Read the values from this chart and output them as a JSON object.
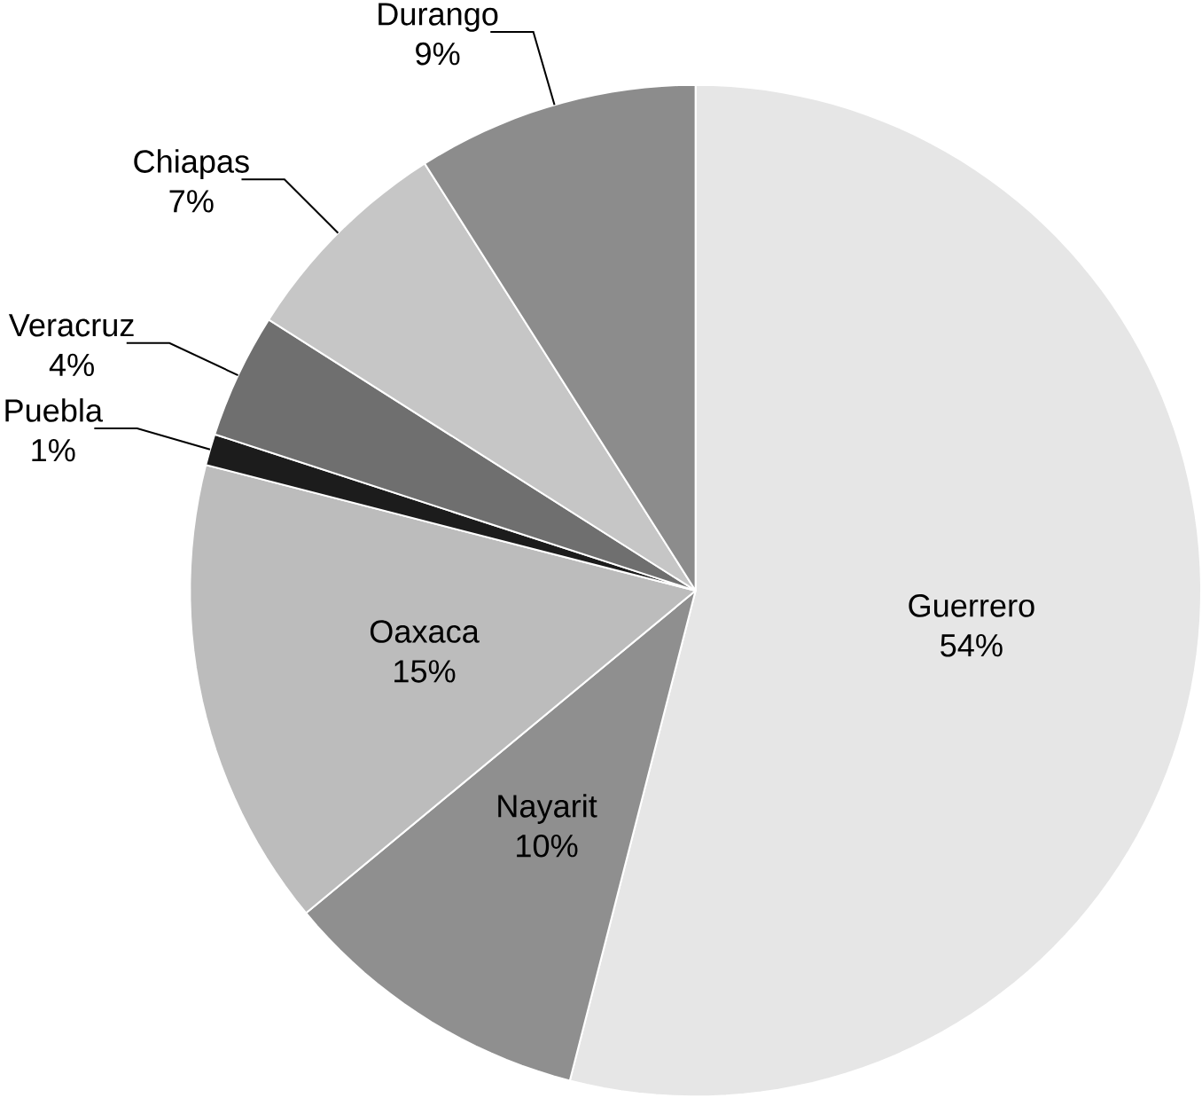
{
  "chart_data": {
    "type": "pie",
    "categories": [
      "Guerrero",
      "Nayarit",
      "Oaxaca",
      "Puebla",
      "Veracruz",
      "Chiapas",
      "Durango"
    ],
    "values": [
      54,
      10,
      15,
      1,
      4,
      7,
      9
    ],
    "value_labels": [
      "54%",
      "10%",
      "15%",
      "1%",
      "4%",
      "7%",
      "9%"
    ],
    "colors": [
      "#e6e6e6",
      "#8f8f8f",
      "#bcbcbc",
      "#1c1c1c",
      "#6f6f6f",
      "#c6c6c6",
      "#8c8c8c"
    ]
  }
}
